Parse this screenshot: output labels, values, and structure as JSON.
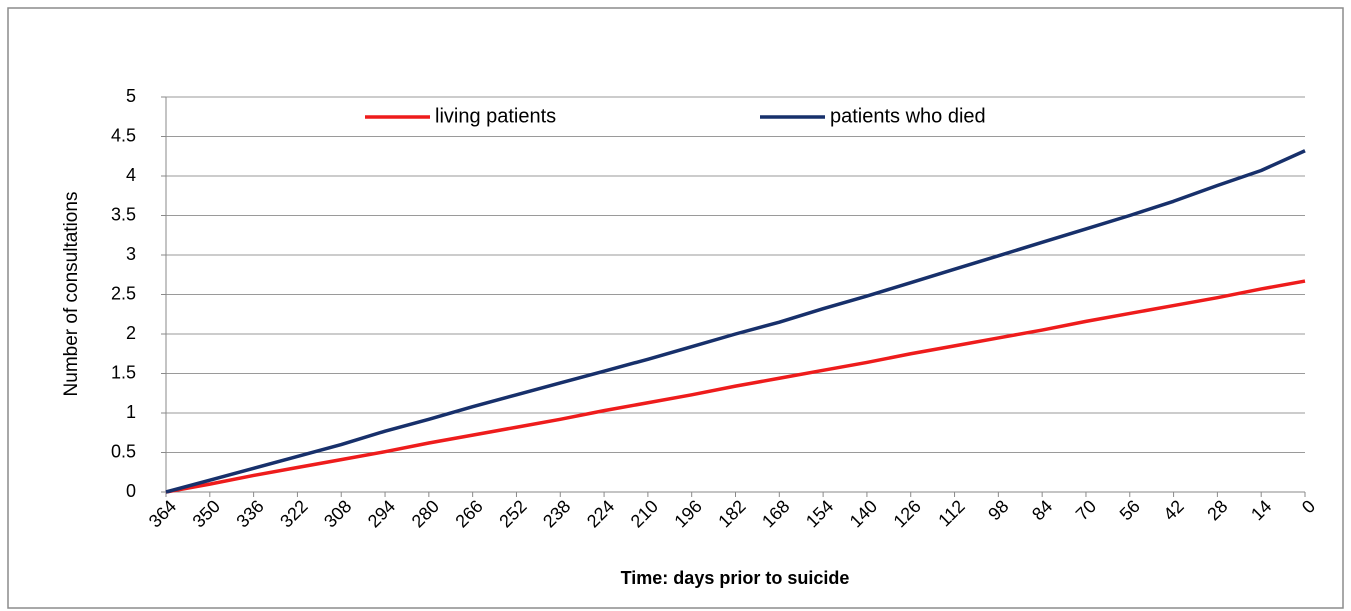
{
  "chart_data": {
    "type": "line",
    "xlabel": "Time: days prior to suicide",
    "ylabel": "Number of consultations",
    "x": [
      364,
      350,
      336,
      322,
      308,
      294,
      280,
      266,
      252,
      238,
      224,
      210,
      196,
      182,
      168,
      154,
      140,
      126,
      112,
      98,
      84,
      70,
      56,
      42,
      28,
      14,
      0
    ],
    "series": [
      {
        "name": "living patients",
        "color": "#ee1c1c",
        "values": [
          0,
          0.1,
          0.21,
          0.31,
          0.41,
          0.51,
          0.62,
          0.72,
          0.82,
          0.92,
          1.03,
          1.13,
          1.23,
          1.34,
          1.44,
          1.54,
          1.64,
          1.75,
          1.85,
          1.95,
          2.05,
          2.16,
          2.26,
          2.36,
          2.46,
          2.57,
          2.67
        ]
      },
      {
        "name": "patients who died",
        "color": "#17306b",
        "values": [
          0,
          0.15,
          0.3,
          0.45,
          0.6,
          0.77,
          0.92,
          1.08,
          1.23,
          1.38,
          1.53,
          1.68,
          1.84,
          2.0,
          2.15,
          2.32,
          2.48,
          2.65,
          2.82,
          2.99,
          3.16,
          3.33,
          3.5,
          3.68,
          3.88,
          4.07,
          4.32
        ]
      }
    ],
    "xlim": [
      364,
      0
    ],
    "xticks": [
      364,
      350,
      336,
      322,
      308,
      294,
      280,
      266,
      252,
      238,
      224,
      210,
      196,
      182,
      168,
      154,
      140,
      126,
      112,
      98,
      84,
      70,
      56,
      42,
      28,
      14,
      0
    ],
    "ylim": [
      0,
      5
    ],
    "yticks": [
      0,
      0.5,
      1,
      1.5,
      2,
      2.5,
      3,
      3.5,
      4,
      4.5,
      5
    ],
    "grid": true,
    "legend": "top"
  }
}
